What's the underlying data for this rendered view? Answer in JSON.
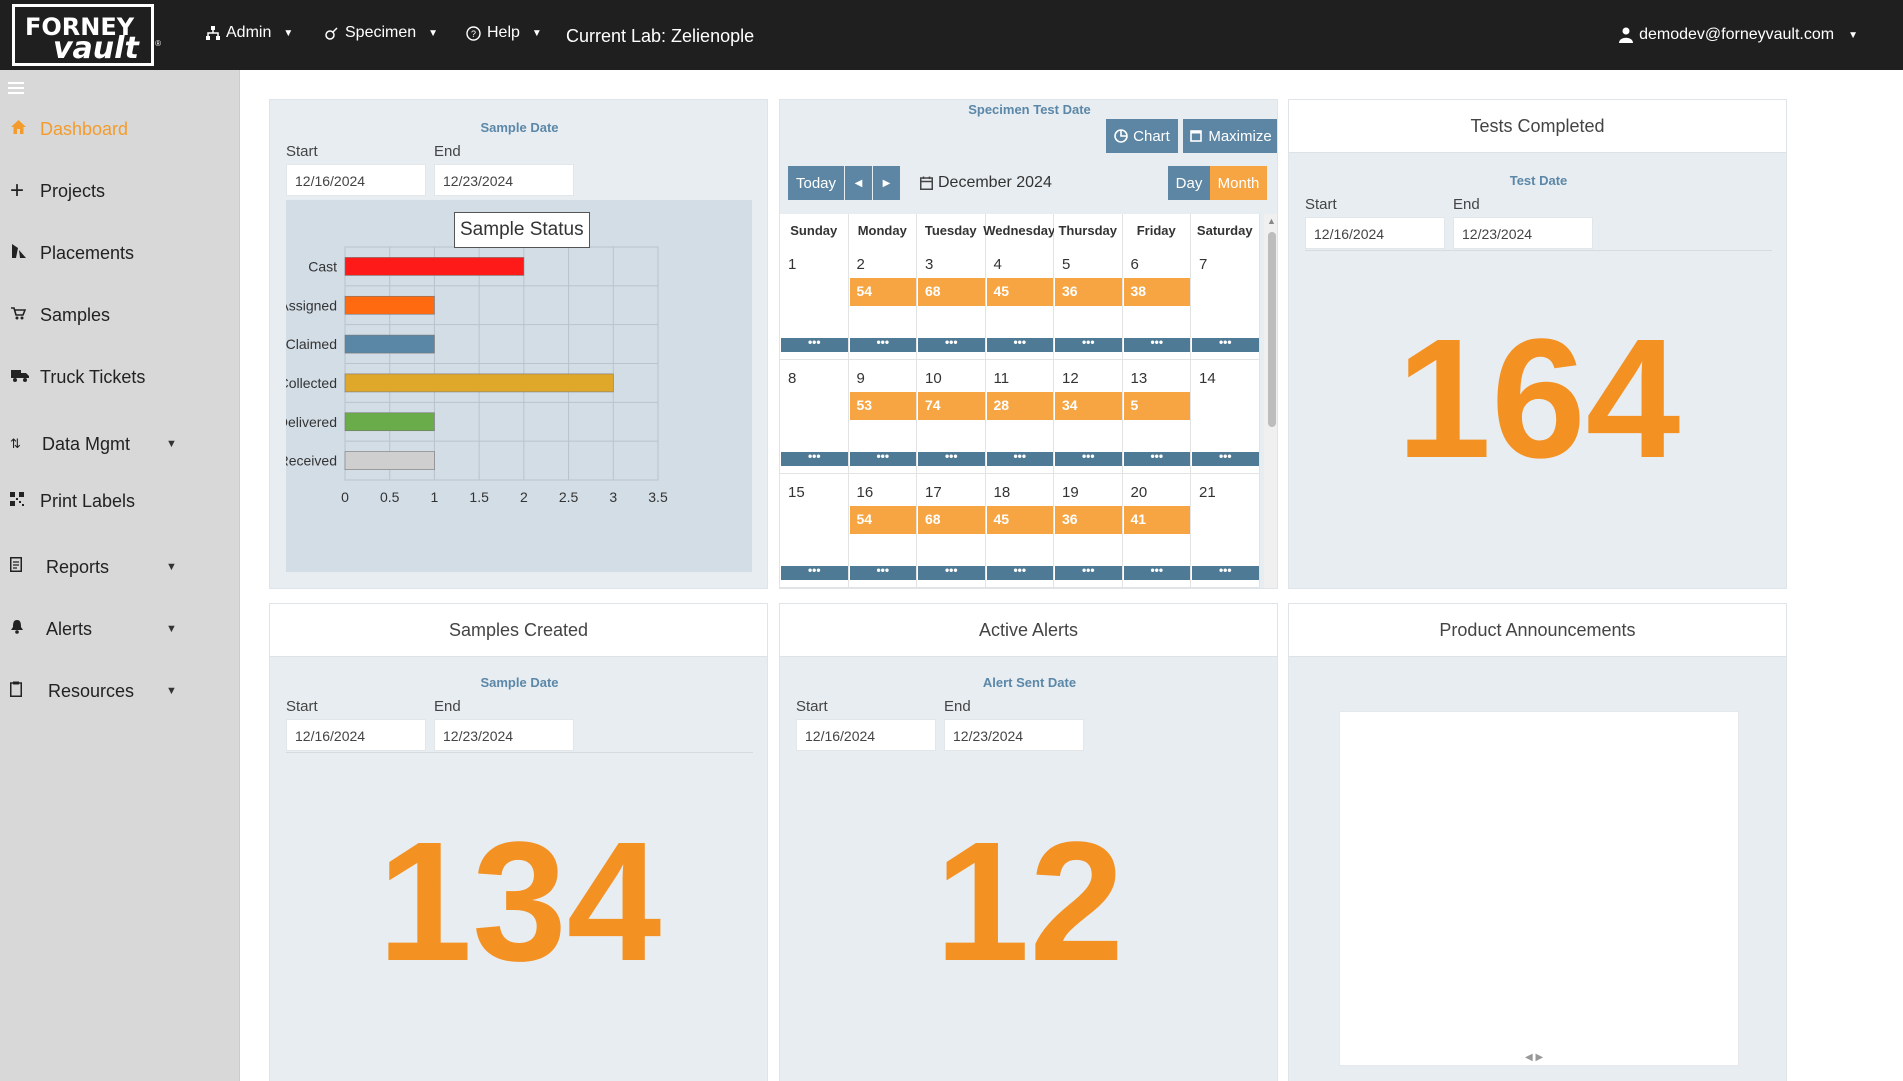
{
  "topbar": {
    "logo_line1": "FORNEY",
    "logo_line2": "vault",
    "logo_reg": "®",
    "nav": [
      {
        "label": "Admin",
        "icon": "sitemap-icon"
      },
      {
        "label": "Specimen",
        "icon": "specimen-icon"
      },
      {
        "label": "Help",
        "icon": "help-icon"
      }
    ],
    "current_lab": "Current Lab: Zelienople",
    "user": "demodev@forneyvault.com"
  },
  "sidebar": {
    "items": [
      {
        "label": "Dashboard",
        "icon": "home-icon",
        "active": true
      },
      {
        "label": "Projects",
        "icon": "plus-icon"
      },
      {
        "label": "Placements",
        "icon": "pour-icon"
      },
      {
        "label": "Samples",
        "icon": "cart-icon"
      },
      {
        "label": "Truck Tickets",
        "icon": "truck-icon"
      },
      {
        "label": "Data Mgmt",
        "icon": "sort-icon",
        "caret": true
      },
      {
        "label": "Print Labels",
        "icon": "qrcode-icon"
      },
      {
        "label": "Reports",
        "icon": "report-icon",
        "caret": true
      },
      {
        "label": "Alerts",
        "icon": "bell-icon",
        "caret": true
      },
      {
        "label": "Resources",
        "icon": "clipboard-icon",
        "caret": true
      }
    ]
  },
  "sample_status_panel": {
    "subtitle": "Sample Date",
    "start_label": "Start",
    "end_label": "End",
    "start": "12/16/2024",
    "end": "12/23/2024"
  },
  "chart_data": {
    "type": "bar",
    "orientation": "horizontal",
    "title": "Sample Status",
    "categories": [
      "Cast",
      "Assigned",
      "Claimed",
      "Collected",
      "Delivered",
      "Received"
    ],
    "values": [
      2,
      1,
      1,
      3,
      1,
      1
    ],
    "colors": [
      "#ff1a1a",
      "#ff6a10",
      "#5a87a6",
      "#e0a82a",
      "#6aab4a",
      "#cfcfcf"
    ],
    "xlim": [
      0,
      3.5
    ],
    "xticks": [
      "0",
      "0.5",
      "1",
      "1.5",
      "2",
      "2.5",
      "3",
      "3.5"
    ],
    "grid": true
  },
  "calendar_panel": {
    "subtitle": "Specimen Test Date",
    "chart_btn": "Chart",
    "maximize_btn": "Maximize",
    "today_btn": "Today",
    "month_label": "December 2024",
    "day_btn": "Day",
    "month_btn": "Month",
    "weekdays": [
      "Sunday",
      "Monday",
      "Tuesday",
      "Wednesday",
      "Thursday",
      "Friday",
      "Saturday"
    ],
    "weeks": [
      {
        "days": [
          "1",
          "2",
          "3",
          "4",
          "5",
          "6",
          "7"
        ],
        "events": [
          "",
          "54",
          "68",
          "45",
          "36",
          "38",
          ""
        ]
      },
      {
        "days": [
          "8",
          "9",
          "10",
          "11",
          "12",
          "13",
          "14"
        ],
        "events": [
          "",
          "53",
          "74",
          "28",
          "34",
          "5",
          ""
        ]
      },
      {
        "days": [
          "15",
          "16",
          "17",
          "18",
          "19",
          "20",
          "21"
        ],
        "events": [
          "",
          "54",
          "68",
          "45",
          "36",
          "41",
          ""
        ]
      }
    ],
    "more_label": "•••"
  },
  "tests_completed": {
    "title": "Tests Completed",
    "subtitle": "Test Date",
    "start_label": "Start",
    "end_label": "End",
    "start": "12/16/2024",
    "end": "12/23/2024",
    "value": "164"
  },
  "samples_created": {
    "title": "Samples Created",
    "subtitle": "Sample Date",
    "start_label": "Start",
    "end_label": "End",
    "start": "12/16/2024",
    "end": "12/23/2024",
    "value": "134"
  },
  "active_alerts": {
    "title": "Active Alerts",
    "subtitle": "Alert Sent Date",
    "start_label": "Start",
    "end_label": "End",
    "start": "12/16/2024",
    "end": "12/23/2024",
    "value": "12"
  },
  "announcements": {
    "title": "Product Announcements"
  },
  "colors": {
    "accent": "#f39123",
    "topbar": "#1f1f1f",
    "sidebar": "#d8d8d8",
    "panel_bg": "#e8edf1",
    "button_blue": "#5c86a3"
  }
}
